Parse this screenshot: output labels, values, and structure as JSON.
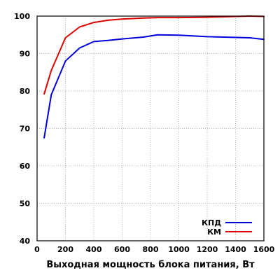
{
  "chart_data": {
    "type": "line",
    "title": "",
    "xlabel": "Выходная мощность блока питания, Вт",
    "ylabel": "",
    "xlim": [
      0,
      1600
    ],
    "ylim": [
      40,
      100
    ],
    "xticks": [
      0,
      200,
      400,
      600,
      800,
      1000,
      1200,
      1400,
      1600
    ],
    "yticks": [
      40,
      50,
      60,
      70,
      80,
      90,
      100
    ],
    "grid": true,
    "legend_position": "bottom-right",
    "series": [
      {
        "name": "КПД",
        "color": "#0000dd",
        "x": [
          50,
          100,
          200,
          300,
          400,
          500,
          600,
          750,
          850,
          1000,
          1200,
          1500,
          1600
        ],
        "y": [
          67.5,
          79,
          88,
          91.5,
          93.2,
          93.5,
          93.9,
          94.4,
          95,
          94.9,
          94.5,
          94.2,
          93.8
        ]
      },
      {
        "name": "КМ",
        "color": "#dd0000",
        "x": [
          50,
          100,
          200,
          300,
          400,
          500,
          600,
          750,
          850,
          1000,
          1200,
          1500,
          1600
        ],
        "y": [
          79.2,
          85.5,
          94.2,
          97.1,
          98.3,
          98.9,
          99.2,
          99.5,
          99.6,
          99.6,
          99.7,
          100,
          99.9
        ]
      }
    ]
  }
}
